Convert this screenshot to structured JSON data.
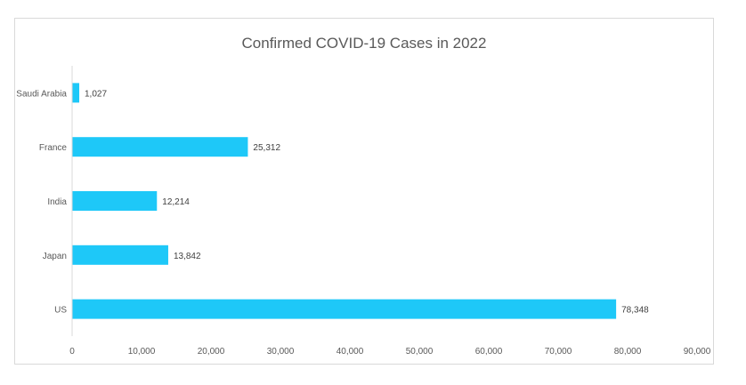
{
  "chart_data": {
    "type": "bar",
    "orientation": "horizontal",
    "title": "Confirmed COVID-19 Cases in 2022",
    "xlabel": "",
    "ylabel": "",
    "categories": [
      "Saudi Arabia",
      "France",
      "India",
      "Japan",
      "US"
    ],
    "values": [
      1027,
      25312,
      12214,
      13842,
      78348
    ],
    "value_labels": [
      "1,027",
      "25,312",
      "12,214",
      "13,842",
      "78,348"
    ],
    "xlim": [
      0,
      90000
    ],
    "x_ticks": [
      0,
      10000,
      20000,
      30000,
      40000,
      50000,
      60000,
      70000,
      80000,
      90000
    ],
    "x_tick_labels": [
      "0",
      "10,000",
      "20,000",
      "30,000",
      "40,000",
      "50,000",
      "60,000",
      "70,000",
      "80,000",
      "90,000"
    ],
    "bar_color": "#1ec8f8",
    "grid": false,
    "legend": "none"
  }
}
